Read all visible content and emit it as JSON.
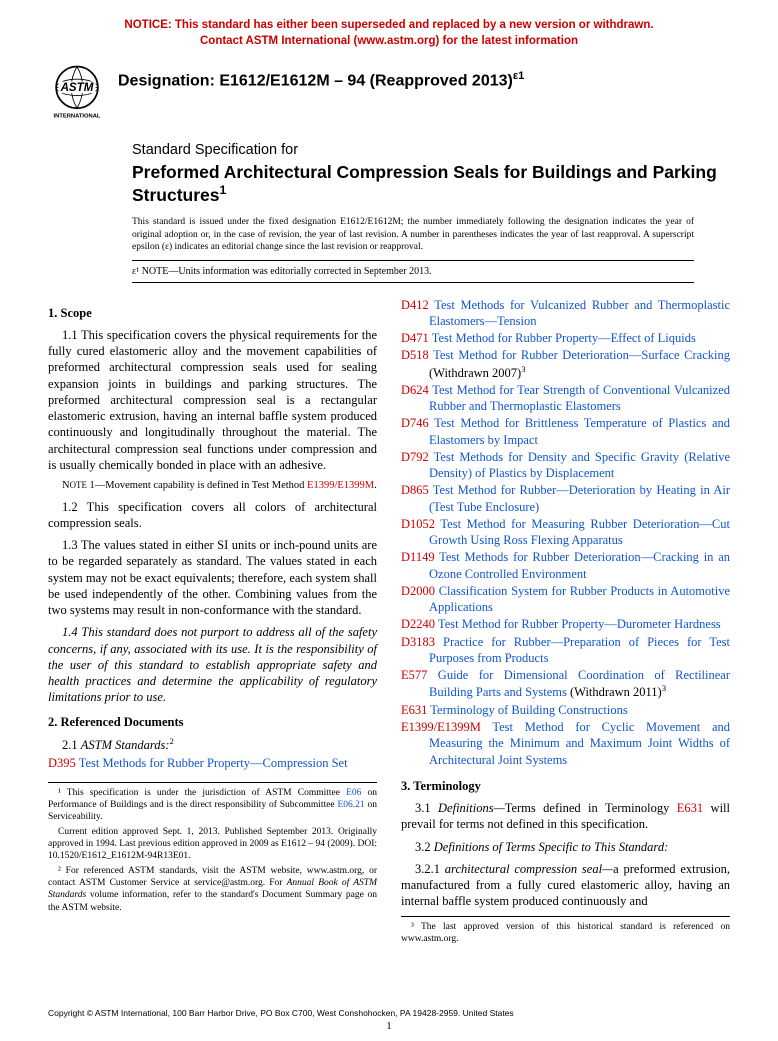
{
  "notice": {
    "line1": "NOTICE: This standard has either been superseded and replaced by a new version or withdrawn.",
    "line2": "Contact ASTM International (www.astm.org) for the latest information"
  },
  "designation": "Designation: E1612/E1612M – 94 (Reapproved 2013)",
  "designation_sup": "ε1",
  "title_pre": "Standard Specification for",
  "title": "Preformed Architectural Compression Seals for Buildings and Parking Structures",
  "title_sup": "1",
  "issuance": "This standard is issued under the fixed designation E1612/E1612M; the number immediately following the designation indicates the year of original adoption or, in the case of revision, the year of last revision. A number in parentheses indicates the year of last reapproval. A superscript epsilon (ε) indicates an editorial change since the last revision or reapproval.",
  "eps_note": "ε¹ NOTE—Units information was editorially corrected in September 2013.",
  "sections": {
    "scope_head": "1. Scope",
    "p1_1": "1.1 This specification covers the physical requirements for the fully cured elastomeric alloy and the movement capabilities of preformed architectural compression seals used for sealing expansion joints in buildings and parking structures. The preformed architectural compression seal is a rectangular elastomeric extrusion, having an internal baffle system produced continuously and longitudinally throughout the material. The architectural compression seal functions under compression and is usually chemically bonded in place with an adhesive.",
    "note1_pre": "NOTE 1—Movement capability is defined in Test Method ",
    "note1_ref": "E1399/E1399M",
    "note1_post": ".",
    "p1_2": "1.2 This specification covers all colors of architectural compression seals.",
    "p1_3": "1.3 The values stated in either SI units or inch-pound units are to be regarded separately as standard. The values stated in each system may not be exact equivalents; therefore, each system shall be used independently of the other. Combining values from the two systems may result in non-conformance with the standard.",
    "p1_4": "1.4 This standard does not purport to address all of the safety concerns, if any, associated with its use. It is the responsibility of the user of this standard to establish appropriate safety and health practices and determine the applicability of regulatory limitations prior to use.",
    "refdoc_head": "2. Referenced Documents",
    "p2_1_pre": "2.1 ",
    "p2_1_ital": "ASTM Standards:",
    "p2_1_sup": "2",
    "term_head": "3. Terminology",
    "p3_1_pre": "3.1 ",
    "p3_1_ital": "Definitions—",
    "p3_1_body": "Terms defined in Terminology ",
    "p3_1_ref": "E631",
    "p3_1_post": " will prevail for terms not defined in this specification.",
    "p3_2": "3.2 Definitions of Terms Specific to This Standard:",
    "p3_2_1_pre": "3.2.1 ",
    "p3_2_1_term": "architectural compression seal—",
    "p3_2_1_body": "a preformed extrusion, manufactured from a fully cured elastomeric alloy, having an internal baffle system produced continuously and"
  },
  "refs": [
    {
      "code": "D395",
      "title": "Test Methods for Rubber Property—Compression Set"
    },
    {
      "code": "D412",
      "title": "Test Methods for Vulcanized Rubber and Thermoplastic Elastomers—Tension"
    },
    {
      "code": "D471",
      "title": "Test Method for Rubber Property—Effect of Liquids"
    },
    {
      "code": "D518",
      "title": "Test Method for Rubber Deterioration—Surface Cracking",
      "withdrawn": " (Withdrawn 2007)",
      "withdrawn_sup": "3"
    },
    {
      "code": "D624",
      "title": "Test Method for Tear Strength of Conventional Vulcanized Rubber and Thermoplastic Elastomers"
    },
    {
      "code": "D746",
      "title": "Test Method for Brittleness Temperature of Plastics and Elastomers by Impact"
    },
    {
      "code": "D792",
      "title": "Test Methods for Density and Specific Gravity (Relative Density) of Plastics by Displacement"
    },
    {
      "code": "D865",
      "title": "Test Method for Rubber—Deterioration by Heating in Air (Test Tube Enclosure)"
    },
    {
      "code": "D1052",
      "title": "Test Method for Measuring Rubber Deterioration—Cut Growth Using Ross Flexing Apparatus"
    },
    {
      "code": "D1149",
      "title": "Test Methods for Rubber Deterioration—Cracking in an Ozone Controlled Environment"
    },
    {
      "code": "D2000",
      "title": "Classification System for Rubber Products in Automotive Applications"
    },
    {
      "code": "D2240",
      "title": "Test Method for Rubber Property—Durometer Hardness"
    },
    {
      "code": "D3183",
      "title": "Practice for Rubber—Preparation of Pieces for Test Purposes from Products"
    },
    {
      "code": "E577",
      "title": "Guide for Dimensional Coordination of Rectilinear Building Parts and Systems",
      "withdrawn": " (Withdrawn 2011)",
      "withdrawn_sup": "3"
    },
    {
      "code": "E631",
      "title": "Terminology of Building Constructions"
    },
    {
      "code": "E1399/E1399M",
      "title": "Test Method for Cyclic Movement and Measuring the Minimum and Maximum Joint Widths of Architectural Joint Systems"
    }
  ],
  "footnotes_left": {
    "f1_pre": "¹ This specification is under the jurisdiction of ASTM Committee ",
    "f1_ref1": "E06",
    "f1_mid": " on Performance of Buildings and is the direct responsibility of Subcommittee ",
    "f1_ref2": "E06.21",
    "f1_post": " on Serviceability.",
    "f1b": "Current edition approved Sept. 1, 2013. Published September 2013. Originally approved in 1994. Last previous edition approved in 2009 as E1612 – 94 (2009). DOI: 10.1520/E1612_E1612M-94R13E01.",
    "f2_pre": "² For referenced ASTM standards, visit the ASTM website, www.astm.org, or contact ASTM Customer Service at service@astm.org. For ",
    "f2_ital": "Annual Book of ASTM Standards",
    "f2_post": " volume information, refer to the standard's Document Summary page on the ASTM website."
  },
  "footnotes_right": {
    "f3": "³ The last approved version of this historical standard is referenced on www.astm.org."
  },
  "copyright": "Copyright © ASTM International, 100 Barr Harbor Drive, PO Box C700, West Conshohocken, PA 19428-2959. United States",
  "page": "1",
  "logo_label": "INTERNATIONAL"
}
